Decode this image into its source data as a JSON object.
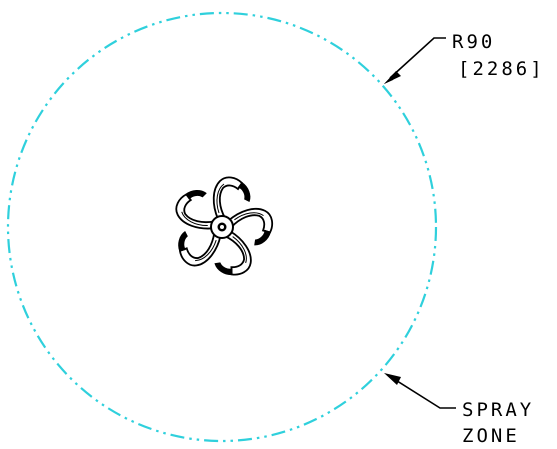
{
  "radius_note": {
    "line1": "R90",
    "line2": "[2286]"
  },
  "zone_note": {
    "line1": "SPRAY",
    "line2": "ZONE"
  },
  "colors": {
    "spray_zone": "#2fd0dc",
    "linework": "#000000"
  },
  "sprinkler": {
    "arm_count": 5,
    "icon": "rotor-sprinkler-icon"
  }
}
